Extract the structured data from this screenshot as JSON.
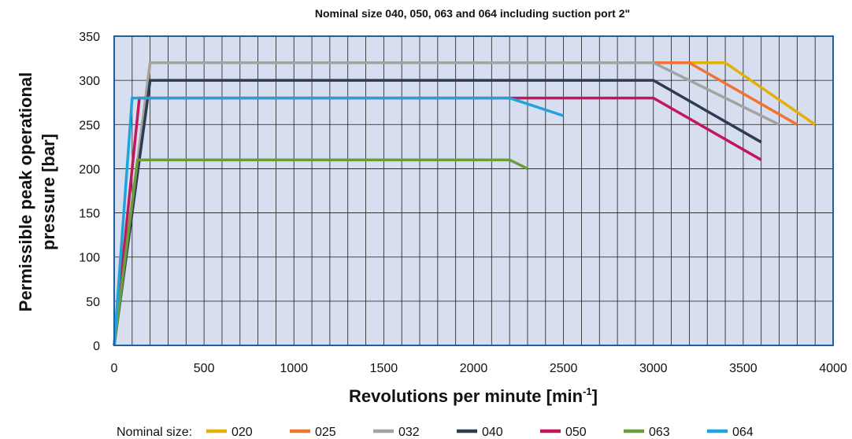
{
  "chart_data": {
    "type": "line",
    "title": "Nominal size 040, 050, 063 and 064 including suction port 2\"",
    "xlabel": "Revolutions per minute [min",
    "xlabel_sup": "-1",
    "xlabel_end": "]",
    "ylabel_line1": "Permissible peak operational",
    "ylabel_line2": "pressure [bar]",
    "xlim": [
      0,
      4000
    ],
    "ylim": [
      0,
      350
    ],
    "x_ticks": [
      "0",
      "500",
      "1000",
      "1500",
      "2000",
      "2500",
      "3000",
      "3500",
      "4000"
    ],
    "y_ticks": [
      "0",
      "50",
      "100",
      "150",
      "200",
      "250",
      "300",
      "350"
    ],
    "x_grid_step": 100,
    "y_grid_step": 50,
    "grid": true,
    "plot_background": "#d6def0",
    "frame_color": "#1f5ea0",
    "legend_label": "Nominal size:",
    "legend_position": "bottom",
    "series": [
      {
        "name": "020",
        "color": "#e3b006",
        "x": [
          0,
          200,
          3400,
          3900
        ],
        "y": [
          0,
          320,
          320,
          250
        ]
      },
      {
        "name": "025",
        "color": "#f07431",
        "x": [
          0,
          200,
          3200,
          3800
        ],
        "y": [
          0,
          320,
          320,
          250
        ]
      },
      {
        "name": "032",
        "color": "#a3a3a3",
        "x": [
          0,
          200,
          3000,
          3700
        ],
        "y": [
          0,
          320,
          320,
          250
        ]
      },
      {
        "name": "040",
        "color": "#2f3b55",
        "x": [
          0,
          200,
          3000,
          3600
        ],
        "y": [
          0,
          300,
          300,
          230
        ]
      },
      {
        "name": "050",
        "color": "#c2185b",
        "x": [
          0,
          140,
          3000,
          3600
        ],
        "y": [
          0,
          280,
          280,
          210
        ]
      },
      {
        "name": "063",
        "color": "#6a9e3a",
        "x": [
          0,
          130,
          2200,
          2300
        ],
        "y": [
          0,
          210,
          210,
          200
        ]
      },
      {
        "name": "064",
        "color": "#1fa3dc",
        "x": [
          0,
          100,
          2200,
          2500
        ],
        "y": [
          0,
          280,
          280,
          260
        ]
      }
    ]
  }
}
